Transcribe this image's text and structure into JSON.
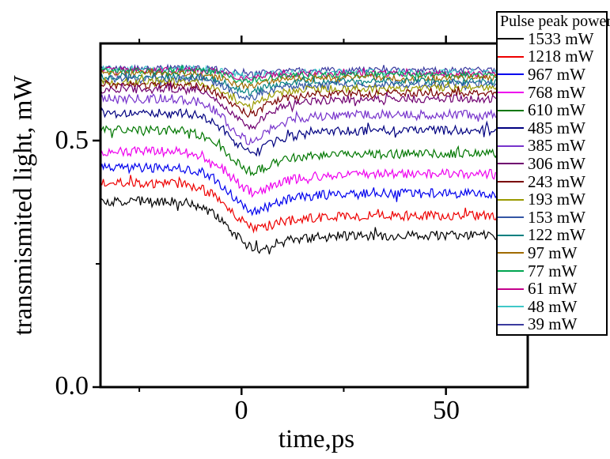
{
  "chart_data": {
    "type": "line",
    "title": "",
    "x_axis": {
      "label": "time,ps",
      "range": [
        -34.5,
        70
      ],
      "major_ticks": [
        0,
        50
      ],
      "minor_ticks": [
        -25,
        25
      ],
      "tick_labels": [
        "0",
        "50"
      ]
    },
    "y_axis": {
      "label": "transmismited light, mW",
      "range": [
        0,
        0.697
      ],
      "major_ticks": [
        0,
        0.5
      ],
      "minor_ticks": [
        0.25
      ],
      "tick_labels": [
        "0.0",
        "0.5"
      ]
    },
    "legend": {
      "title": "Pulse peak power:",
      "position": "top-right"
    },
    "grid": false,
    "series": [
      {
        "label": "1533 mW",
        "power_mW": 1533,
        "color": "#000000",
        "baseline_mW": 0.377,
        "dip_min_mW": 0.28,
        "post_level_mW": 0.308,
        "dip_center_ps": 4.5,
        "fall_sigma_ps": 7.0,
        "recovery_tau_ps": 7.5,
        "noise_mW": 0.0095
      },
      {
        "label": "1218 mW",
        "power_mW": 1218,
        "color": "#EE0000",
        "baseline_mW": 0.413,
        "dip_min_mW": 0.321,
        "post_level_mW": 0.348,
        "dip_center_ps": 4.5,
        "fall_sigma_ps": 7.0,
        "recovery_tau_ps": 7.5,
        "noise_mW": 0.0095
      },
      {
        "label": "967 mW",
        "power_mW": 967,
        "color": "#0000EE",
        "baseline_mW": 0.445,
        "dip_min_mW": 0.356,
        "post_level_mW": 0.393,
        "dip_center_ps": 4.0,
        "fall_sigma_ps": 6.5,
        "recovery_tau_ps": 7.0,
        "noise_mW": 0.0095
      },
      {
        "label": "768 mW",
        "power_mW": 768,
        "color": "#EE00EE",
        "baseline_mW": 0.478,
        "dip_min_mW": 0.393,
        "post_level_mW": 0.433,
        "dip_center_ps": 4.0,
        "fall_sigma_ps": 6.5,
        "recovery_tau_ps": 7.0,
        "noise_mW": 0.0095
      },
      {
        "label": "610 mW",
        "power_mW": 610,
        "color": "#007700",
        "baseline_mW": 0.521,
        "dip_min_mW": 0.437,
        "post_level_mW": 0.473,
        "dip_center_ps": 3.5,
        "fall_sigma_ps": 6.5,
        "recovery_tau_ps": 6.5,
        "noise_mW": 0.009
      },
      {
        "label": "485 mW",
        "power_mW": 485,
        "color": "#000080",
        "baseline_mW": 0.556,
        "dip_min_mW": 0.473,
        "post_level_mW": 0.521,
        "dip_center_ps": 3.5,
        "fall_sigma_ps": 6.0,
        "recovery_tau_ps": 6.5,
        "noise_mW": 0.009
      },
      {
        "label": "385 mW",
        "power_mW": 385,
        "color": "#7733CC",
        "baseline_mW": 0.585,
        "dip_min_mW": 0.497,
        "post_level_mW": 0.553,
        "dip_center_ps": 3.0,
        "fall_sigma_ps": 6.0,
        "recovery_tau_ps": 6.0,
        "noise_mW": 0.009
      },
      {
        "label": "306 mW",
        "power_mW": 306,
        "color": "#700070",
        "baseline_mW": 0.604,
        "dip_min_mW": 0.529,
        "post_level_mW": 0.585,
        "dip_center_ps": 3.0,
        "fall_sigma_ps": 6.0,
        "recovery_tau_ps": 6.0,
        "noise_mW": 0.008
      },
      {
        "label": "243 mW",
        "power_mW": 243,
        "color": "#7A0000",
        "baseline_mW": 0.612,
        "dip_min_mW": 0.553,
        "post_level_mW": 0.596,
        "dip_center_ps": 3.0,
        "fall_sigma_ps": 5.5,
        "recovery_tau_ps": 5.5,
        "noise_mW": 0.0075
      },
      {
        "label": "193 mW",
        "power_mW": 193,
        "color": "#9A9A00",
        "baseline_mW": 0.62,
        "dip_min_mW": 0.569,
        "post_level_mW": 0.606,
        "dip_center_ps": 2.5,
        "fall_sigma_ps": 5.5,
        "recovery_tau_ps": 5.5,
        "noise_mW": 0.0075
      },
      {
        "label": "153 mW",
        "power_mW": 153,
        "color": "#3355A4",
        "baseline_mW": 0.625,
        "dip_min_mW": 0.585,
        "post_level_mW": 0.614,
        "dip_center_ps": 2.5,
        "fall_sigma_ps": 5.0,
        "recovery_tau_ps": 5.0,
        "noise_mW": 0.007
      },
      {
        "label": "122 mW",
        "power_mW": 122,
        "color": "#008080",
        "baseline_mW": 0.63,
        "dip_min_mW": 0.598,
        "post_level_mW": 0.62,
        "dip_center_ps": 2.5,
        "fall_sigma_ps": 5.0,
        "recovery_tau_ps": 5.0,
        "noise_mW": 0.007
      },
      {
        "label": "97 mW",
        "power_mW": 97,
        "color": "#A06B00",
        "baseline_mW": 0.636,
        "dip_min_mW": 0.609,
        "post_level_mW": 0.627,
        "dip_center_ps": 2.0,
        "fall_sigma_ps": 5.0,
        "recovery_tau_ps": 5.0,
        "noise_mW": 0.0065
      },
      {
        "label": "77 mW",
        "power_mW": 77,
        "color": "#00A550",
        "baseline_mW": 0.641,
        "dip_min_mW": 0.619,
        "post_level_mW": 0.633,
        "dip_center_ps": 2.0,
        "fall_sigma_ps": 4.5,
        "recovery_tau_ps": 4.5,
        "noise_mW": 0.0065
      },
      {
        "label": "61 mW",
        "power_mW": 61,
        "color": "#C4008C",
        "baseline_mW": 0.643,
        "dip_min_mW": 0.625,
        "post_level_mW": 0.636,
        "dip_center_ps": 2.0,
        "fall_sigma_ps": 4.5,
        "recovery_tau_ps": 4.5,
        "noise_mW": 0.006
      },
      {
        "label": "48 mW",
        "power_mW": 48,
        "color": "#3FC8C8",
        "baseline_mW": 0.646,
        "dip_min_mW": 0.63,
        "post_level_mW": 0.639,
        "dip_center_ps": 2.0,
        "fall_sigma_ps": 4.5,
        "recovery_tau_ps": 4.5,
        "noise_mW": 0.006
      },
      {
        "label": "39 mW",
        "power_mW": 39,
        "color": "#3A3A9F",
        "baseline_mW": 0.647,
        "dip_min_mW": 0.635,
        "post_level_mW": 0.643,
        "dip_center_ps": 2.0,
        "fall_sigma_ps": 4.5,
        "recovery_tau_ps": 4.5,
        "noise_mW": 0.006
      }
    ]
  }
}
